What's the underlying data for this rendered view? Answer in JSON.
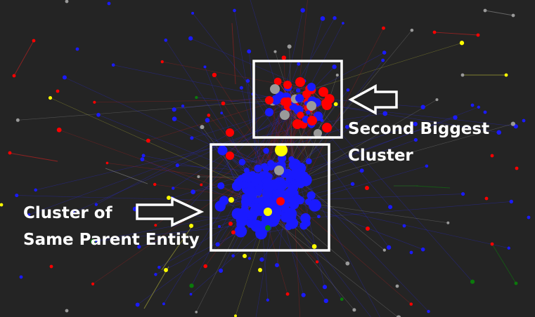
{
  "annotations": {
    "second_cluster": {
      "line1": "Second Biggest",
      "line2": "Cluster"
    },
    "parent_cluster": {
      "line1": "Cluster of",
      "line2": "Same Parent Entity"
    }
  },
  "colors": {
    "background": "#242424",
    "blue_node": "#1a1aff",
    "red_node": "#ff0000",
    "gray_node": "#9a9a9a",
    "yellow_node": "#ffff00",
    "green_node": "#0b7a0b",
    "highlight_box": "#ffffff"
  }
}
